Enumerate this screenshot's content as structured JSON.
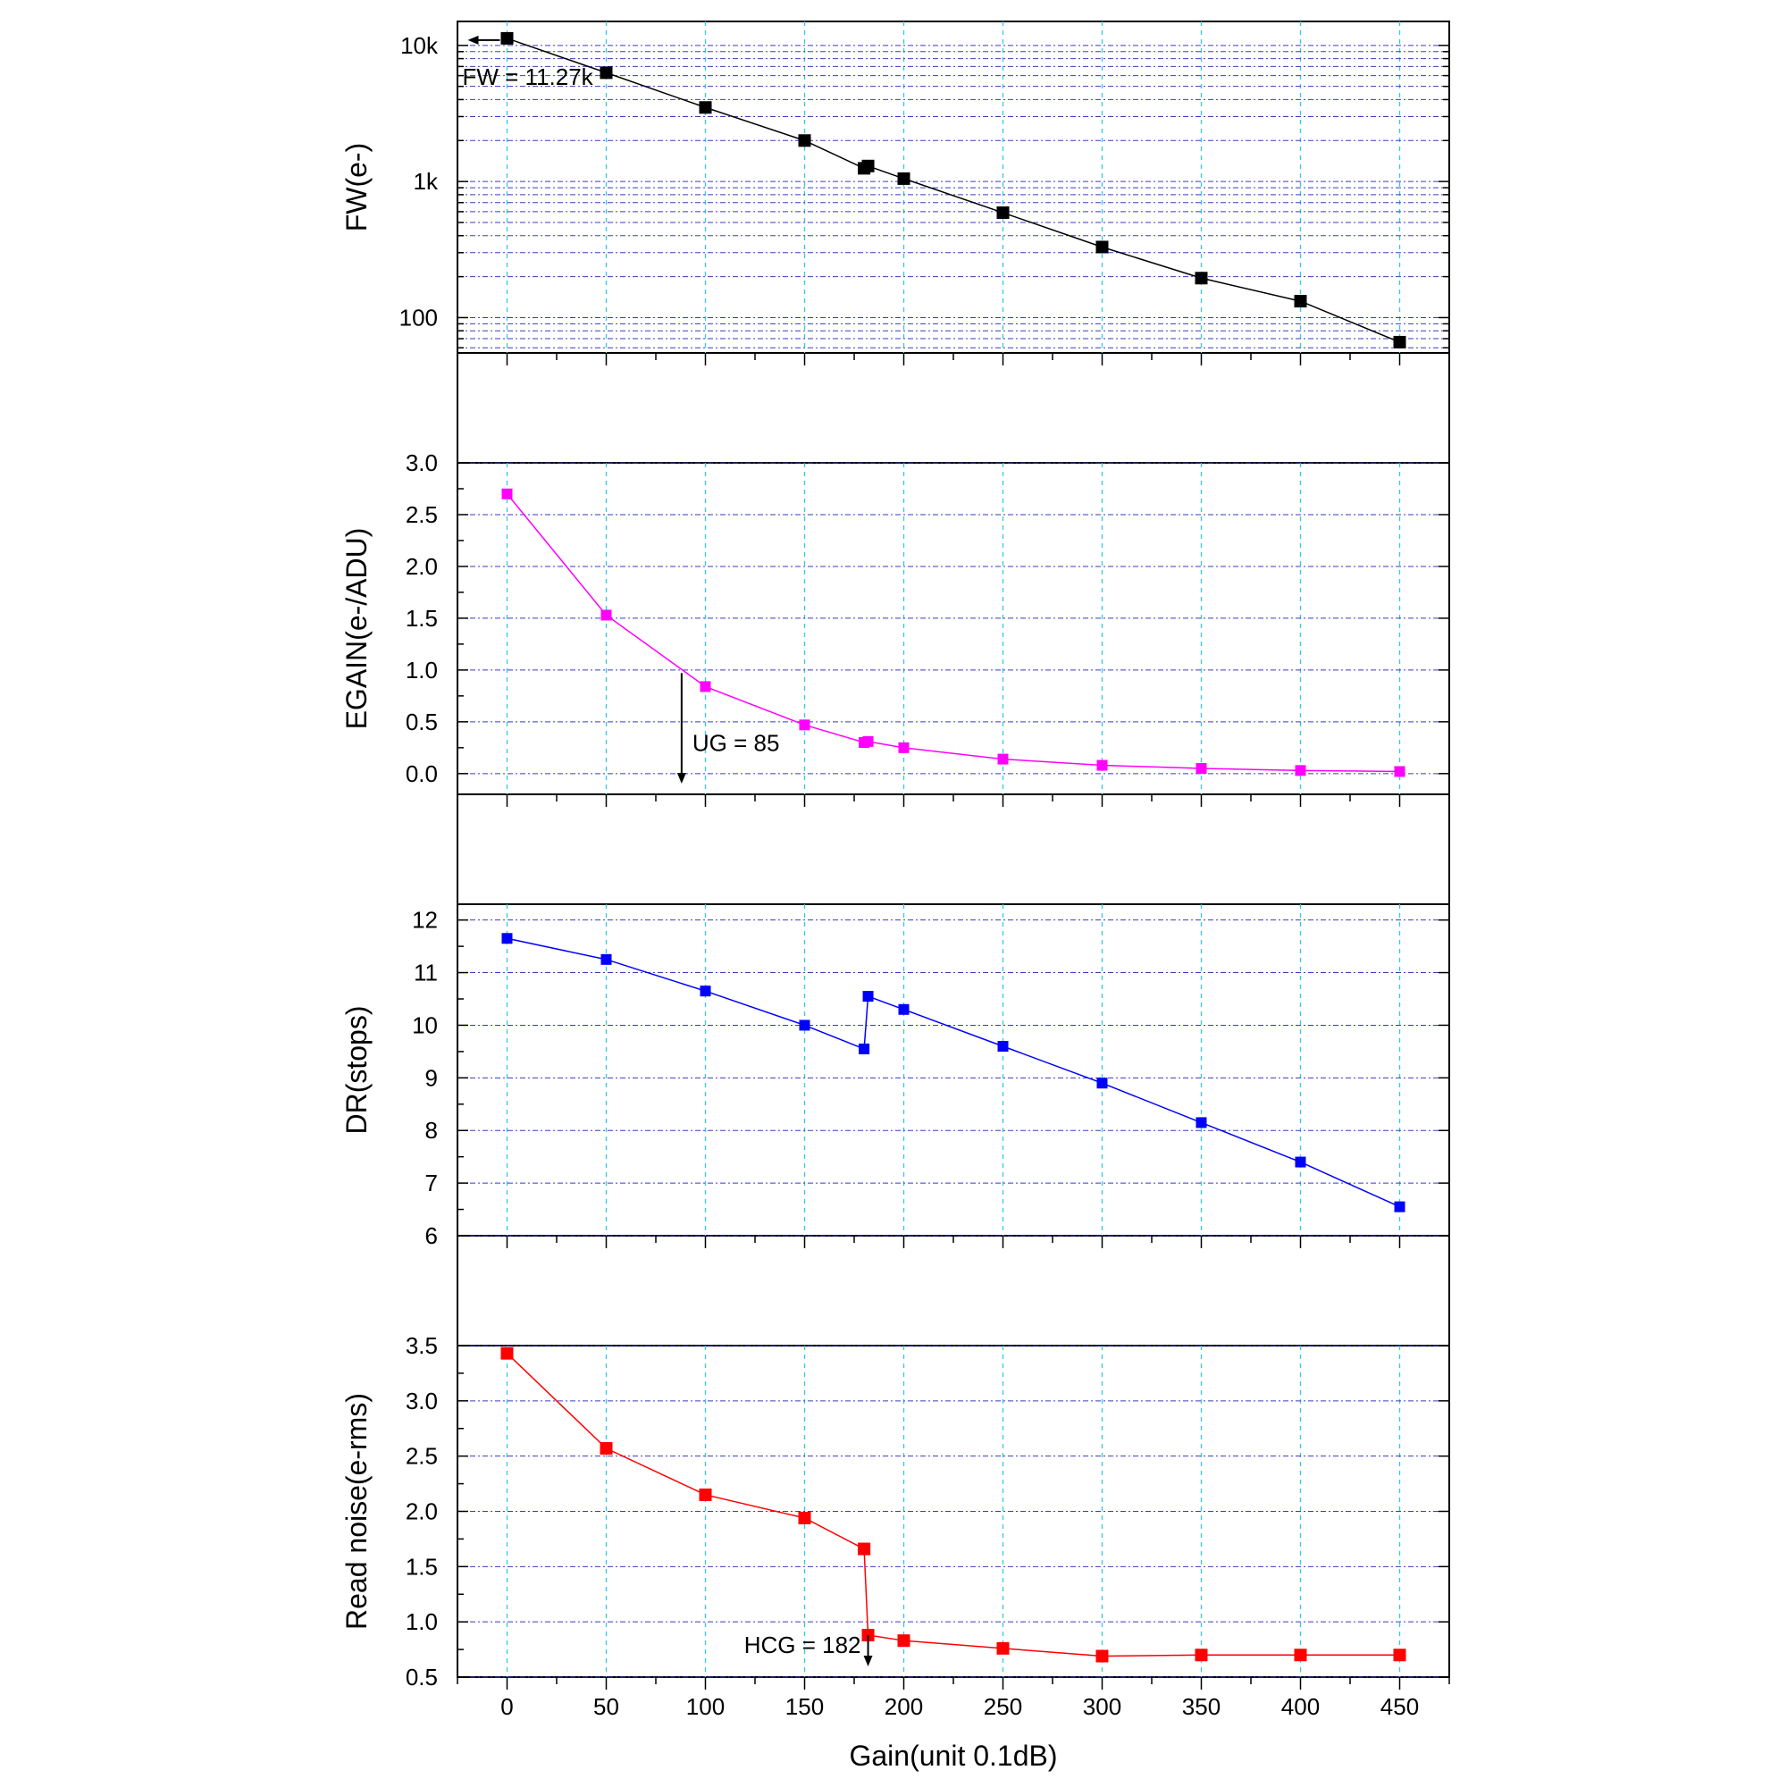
{
  "chart_data": {
    "type": "line",
    "xlabel": "Gain(unit 0.1dB)",
    "x_ticks": [
      0,
      50,
      100,
      150,
      200,
      250,
      300,
      350,
      400,
      450
    ],
    "xlim": [
      -25,
      475
    ],
    "grid": true,
    "panels": [
      {
        "id": "fw",
        "ylabel": "FW(e-)",
        "yscale": "log",
        "ylim": [
          55,
          15000
        ],
        "y_ticks": [
          100,
          1000,
          10000
        ],
        "y_tick_labels": [
          "100",
          "1k",
          "10k"
        ],
        "color": "#000000",
        "series": [
          {
            "x": [
              0,
              50,
              100,
              150,
              180,
              182,
              200,
              250,
              300,
              350,
              400,
              450
            ],
            "y": [
              11270,
              6300,
              3500,
              2000,
              1250,
              1300,
              1050,
              590,
              330,
              195,
              132,
              66
            ]
          }
        ],
        "annotation": {
          "text": "FW = 11.27k",
          "x": 0,
          "y": 11270,
          "arrow": "left"
        }
      },
      {
        "id": "egain",
        "ylabel": "EGAIN(e-/ADU)",
        "yscale": "linear",
        "ylim": [
          -0.2,
          3.0
        ],
        "y_ticks": [
          0.0,
          0.5,
          1.0,
          1.5,
          2.0,
          2.5,
          3.0
        ],
        "y_tick_labels": [
          "0.0",
          "0.5",
          "1.0",
          "1.5",
          "2.0",
          "2.5",
          "3.0"
        ],
        "color": "#ff00ff",
        "series": [
          {
            "x": [
              0,
              50,
              100,
              150,
              180,
              182,
              200,
              250,
              300,
              350,
              400,
              450
            ],
            "y": [
              2.7,
              1.53,
              0.84,
              0.47,
              0.3,
              0.31,
              0.25,
              0.14,
              0.08,
              0.05,
              0.03,
              0.02
            ]
          }
        ],
        "annotation": {
          "text": "UG = 85",
          "x": 88,
          "y": 0.97,
          "arrow": "down"
        }
      },
      {
        "id": "dr",
        "ylabel": "DR(stops)",
        "yscale": "linear",
        "ylim": [
          6,
          12.3
        ],
        "y_ticks": [
          6,
          7,
          8,
          9,
          10,
          11,
          12
        ],
        "y_tick_labels": [
          "6",
          "7",
          "8",
          "9",
          "10",
          "11",
          "12"
        ],
        "color": "#0000ff",
        "series": [
          {
            "x": [
              0,
              50,
              100,
              150,
              180,
              182,
              200,
              250,
              300,
              350,
              400,
              450
            ],
            "y": [
              11.65,
              11.25,
              10.65,
              10.0,
              9.55,
              10.55,
              10.3,
              9.6,
              8.9,
              8.15,
              7.4,
              6.55
            ]
          }
        ]
      },
      {
        "id": "rn",
        "ylabel": "Read noise(e-rms)",
        "yscale": "linear",
        "ylim": [
          0.5,
          3.5
        ],
        "y_ticks": [
          0.5,
          1.0,
          1.5,
          2.0,
          2.5,
          3.0,
          3.5
        ],
        "y_tick_labels": [
          "0.5",
          "1.0",
          "1.5",
          "2.0",
          "2.5",
          "3.0",
          "3.5"
        ],
        "color": "#ff0000",
        "series": [
          {
            "x": [
              0,
              50,
              100,
              150,
              180,
              182,
              200,
              250,
              300,
              350,
              400,
              450
            ],
            "y": [
              3.43,
              2.57,
              2.15,
              1.94,
              1.66,
              0.88,
              0.83,
              0.76,
              0.69,
              0.7,
              0.7,
              0.7
            ]
          }
        ],
        "annotation": {
          "text": "HCG = 182",
          "x": 182,
          "y": 0.88,
          "arrow": "down"
        }
      }
    ]
  }
}
